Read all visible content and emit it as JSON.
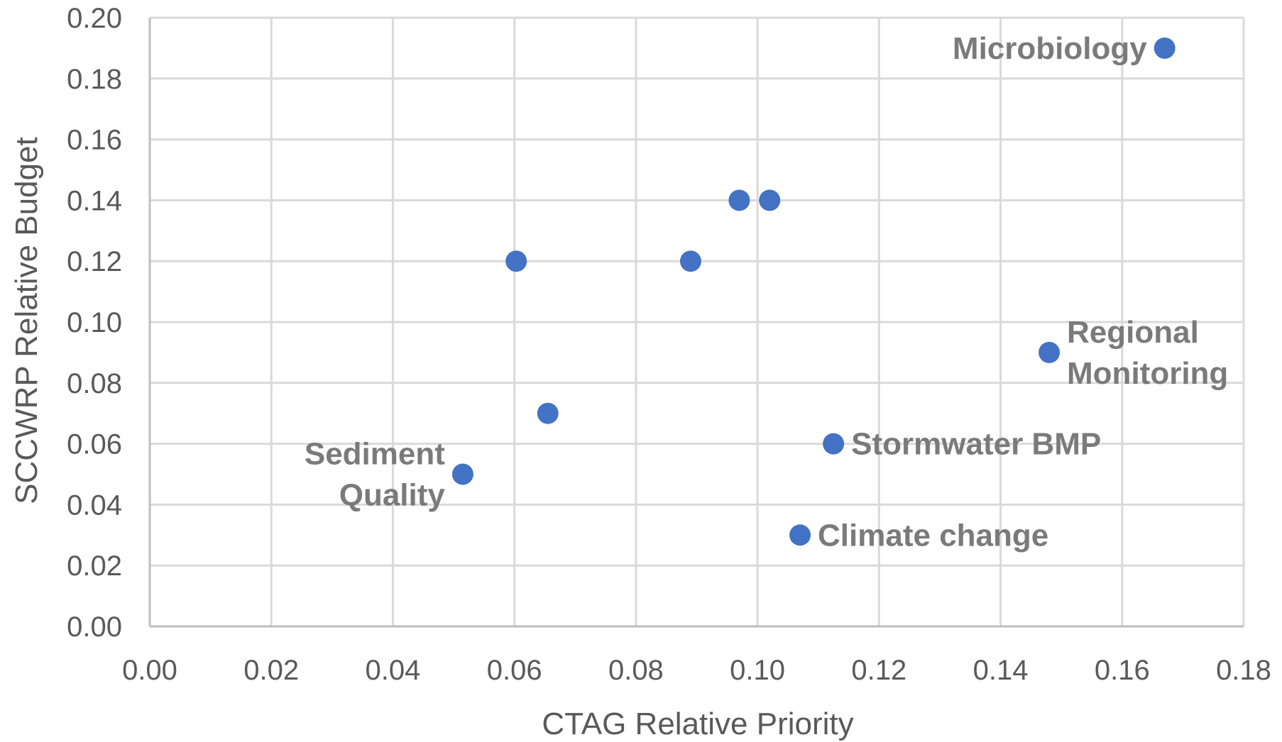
{
  "chart_data": {
    "type": "scatter",
    "title": "",
    "xlabel": "CTAG Relative Priority",
    "ylabel": "SCCWRP Relative Budget",
    "xlim": [
      0,
      0.18
    ],
    "ylim": [
      0,
      0.2
    ],
    "x_ticks": [
      "0.00",
      "0.02",
      "0.04",
      "0.06",
      "0.08",
      "0.10",
      "0.12",
      "0.14",
      "0.16",
      "0.18"
    ],
    "y_ticks": [
      "0.00",
      "0.02",
      "0.04",
      "0.06",
      "0.08",
      "0.10",
      "0.12",
      "0.14",
      "0.16",
      "0.18",
      "0.20"
    ],
    "grid": true,
    "legend": "none",
    "marker_color": "#4472C4",
    "points": [
      {
        "x": 0.167,
        "y": 0.19,
        "label": [
          "Microbiology"
        ],
        "label_side": "left"
      },
      {
        "x": 0.148,
        "y": 0.09,
        "label": [
          "Regional",
          "Monitoring"
        ],
        "label_side": "right"
      },
      {
        "x": 0.1125,
        "y": 0.06,
        "label": [
          "Stormwater BMP"
        ],
        "label_side": "right"
      },
      {
        "x": 0.107,
        "y": 0.03,
        "label": [
          "Climate change"
        ],
        "label_side": "right"
      },
      {
        "x": 0.0515,
        "y": 0.05,
        "label": [
          "Sediment",
          "Quality"
        ],
        "label_side": "left"
      },
      {
        "x": 0.0655,
        "y": 0.07
      },
      {
        "x": 0.0603,
        "y": 0.12
      },
      {
        "x": 0.089,
        "y": 0.12
      },
      {
        "x": 0.097,
        "y": 0.14
      },
      {
        "x": 0.102,
        "y": 0.14
      }
    ]
  }
}
